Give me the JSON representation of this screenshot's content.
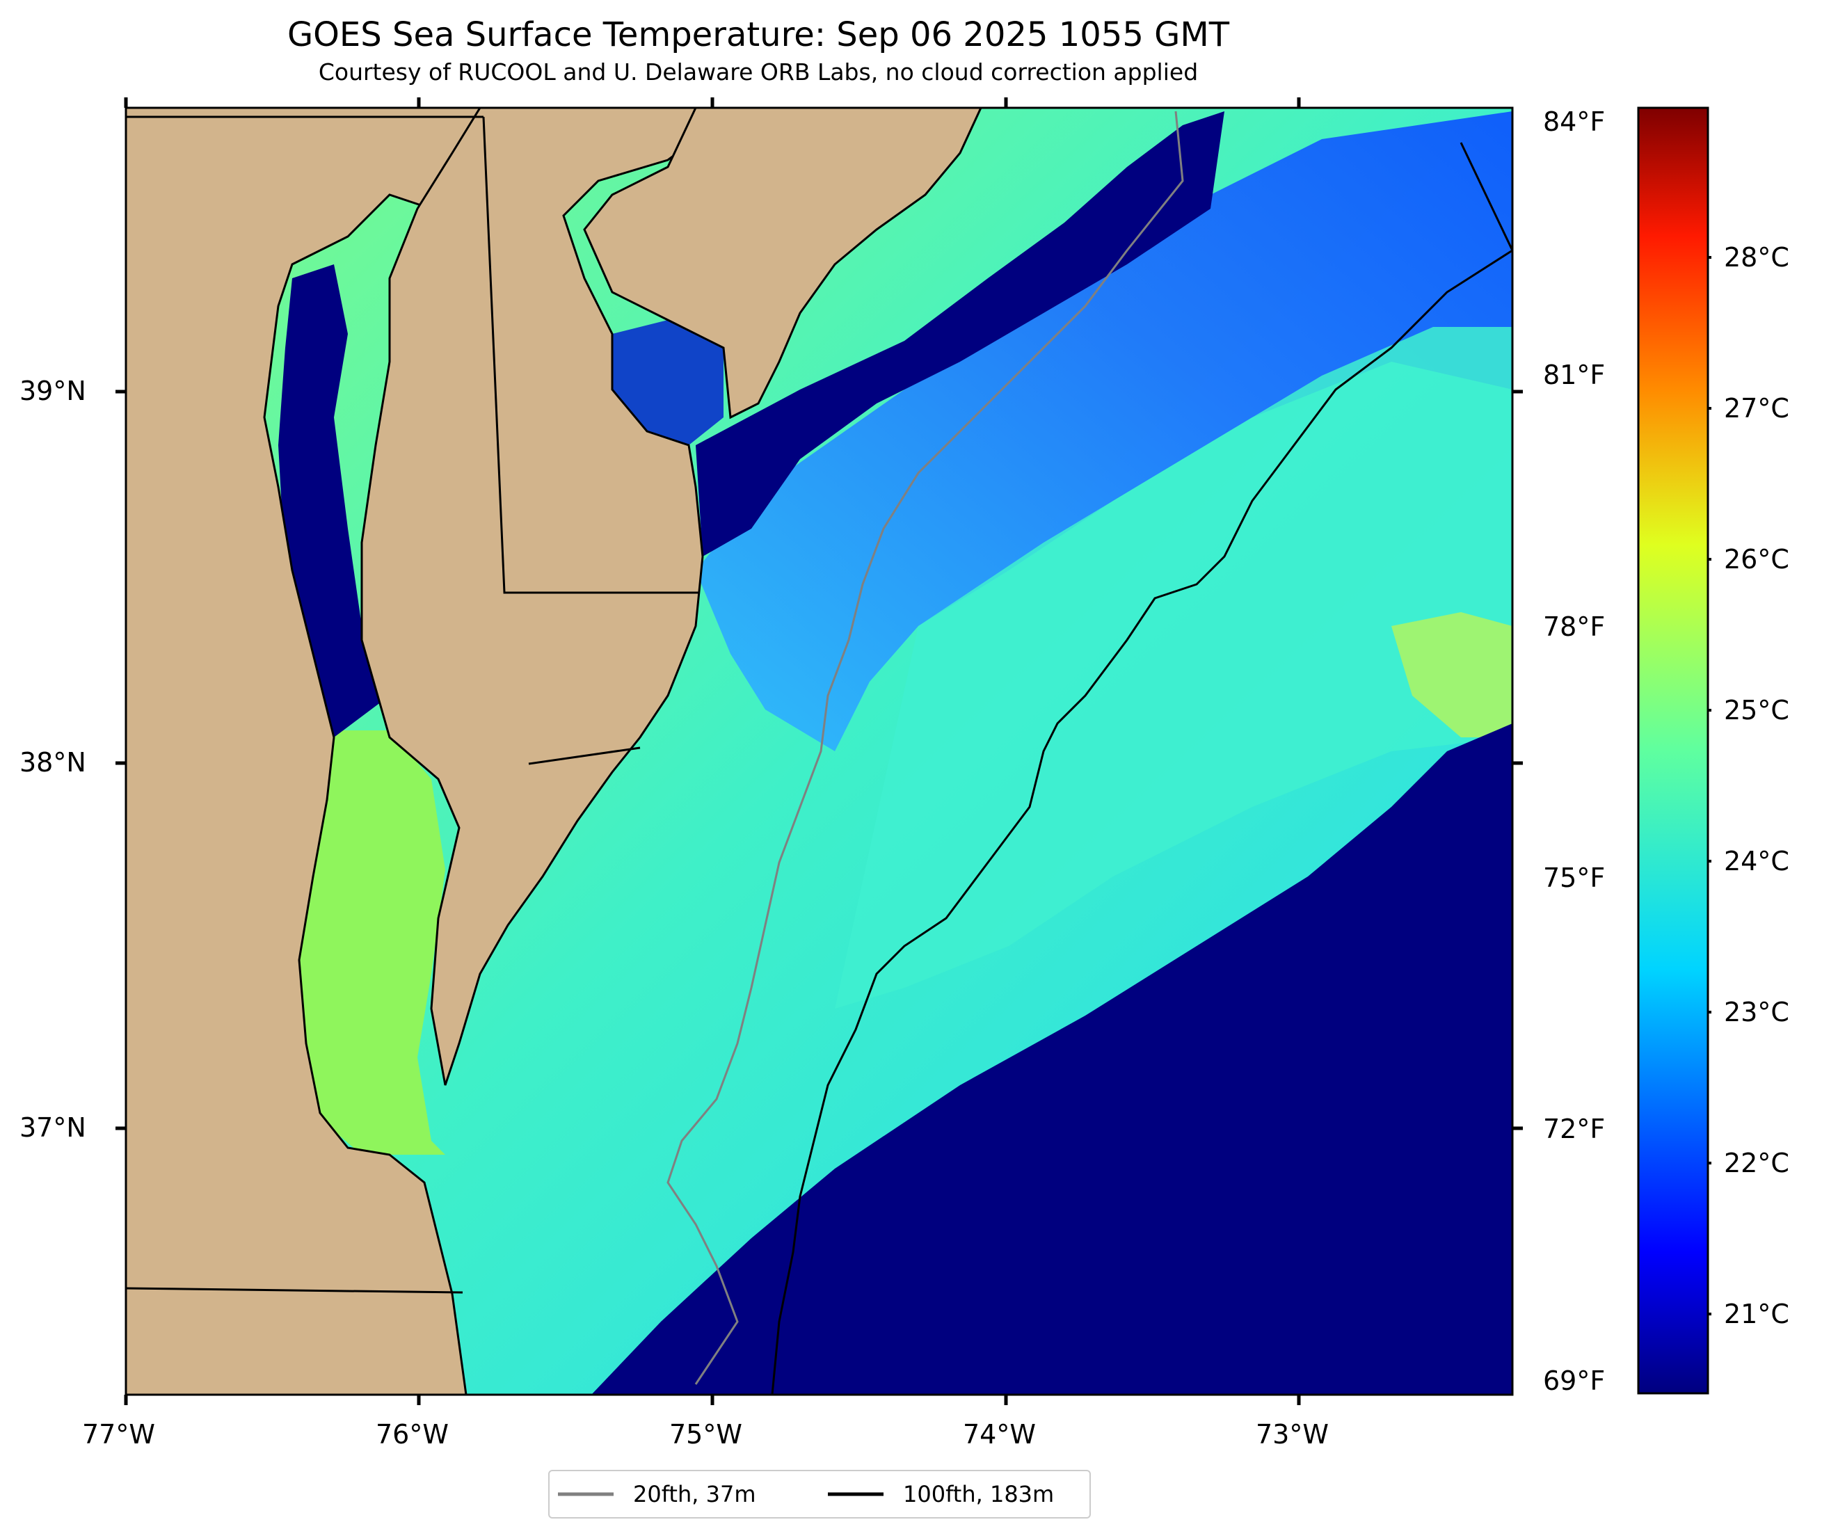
{
  "map": {
    "title": "GOES Sea Surface Temperature: Sep 06 2025 1055 GMT",
    "subtitle": "Courtesy of RUCOOL and U. Delaware ORB Labs, no cloud correction applied",
    "lon_labels": [
      "77°W",
      "76°W",
      "75°W",
      "74°W",
      "73°W"
    ],
    "lat_labels": [
      "39°N",
      "38°N",
      "37°N"
    ],
    "colors": {
      "land": "#d2b48c",
      "ocean_cold": "#00007f",
      "ocean_mid": "#0a7cff",
      "ocean_warm": "#3ff0e0",
      "ocean_hot": "#9bff5a",
      "contour_20fth": "#808080",
      "contour_100fth": "#000000"
    }
  },
  "colorbar": {
    "celsius_labels": [
      "28°C",
      "27°C",
      "26°C",
      "25°C",
      "24°C",
      "23°C",
      "22°C",
      "21°C"
    ],
    "fahrenheit_labels": [
      "84°F",
      "81°F",
      "78°F",
      "75°F",
      "72°F",
      "69°F"
    ],
    "gradient": [
      "#00007f",
      "#0000ff",
      "#007fff",
      "#00ffff",
      "#7fff7f",
      "#ffff00",
      "#ff7f00",
      "#ff0000",
      "#7f0000"
    ]
  },
  "legend": {
    "items": [
      {
        "label": "20fth, 37m",
        "color": "#808080"
      },
      {
        "label": "100fth, 183m",
        "color": "#000000"
      }
    ]
  }
}
